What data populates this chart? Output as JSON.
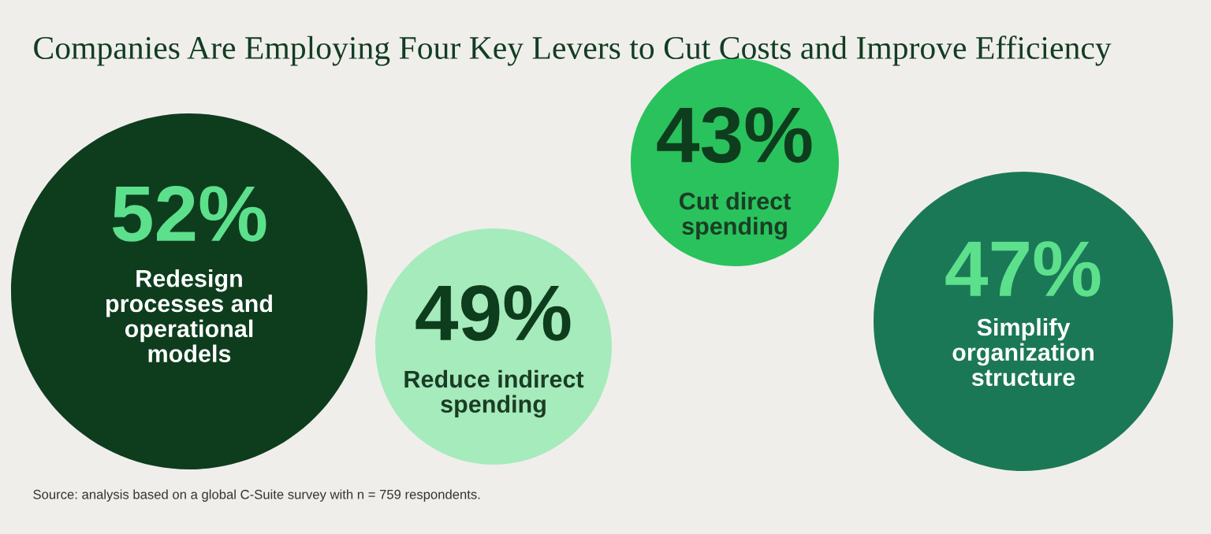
{
  "chart_data": {
    "type": "other",
    "title": "Companies Are Employing Four Key Levers to Cut Costs and Improve Efficiency",
    "categories": [
      "Redesign\nprocesses and\noperational\nmodels",
      "Reduce indirect\nspending",
      "Cut direct\nspending",
      "Simplify\norganization\nstructure"
    ],
    "values": [
      52,
      49,
      43,
      47
    ],
    "value_labels": [
      "52%",
      "49%",
      "43%",
      "47%"
    ],
    "colors": [
      "#0e3d1e",
      "#a6ebbb",
      "#2ac25c",
      "#1b7857"
    ],
    "annotations": [
      "Source: analysis based on a global C-Suite survey with n = 759 respondents."
    ]
  }
}
